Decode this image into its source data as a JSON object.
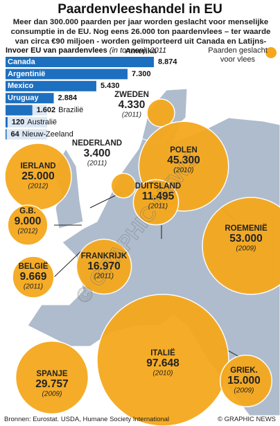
{
  "title": "Paardenvleeshandel in EU",
  "subtitle": "Meer dan 300.000 paarden per jaar worden geslacht voor menselijke consumptie in de EU. Nog eens 26.000 ton paardenvlees – ter waarde van circa €90 miljoen - worden geïmporteerd uit Canada en Latijns-Amerika",
  "source": "Bronnen: Eurostat. USDA, Humane Society International",
  "credit": "© GRAPHIC NEWS",
  "watermark": "© GRAPHIC NEWS",
  "chart_data": [
    {
      "type": "hbar",
      "title": "Invoer EU van paardenvlees",
      "subtitle": "(in tonnen), 2011",
      "color": "#1d6fc0",
      "categories": [
        "Canada",
        "Argentinië",
        "Mexico",
        "Uruguay",
        "Brazilië",
        "Australië",
        "Nieuw-Zeeland"
      ],
      "values": [
        8874,
        7300,
        5430,
        2884,
        1602,
        120,
        64
      ],
      "value_labels": [
        "8.874",
        "7.300",
        "5.430",
        "2.884",
        "1.602",
        "120",
        "64"
      ]
    },
    {
      "type": "bubble",
      "legend": "Paarden geslacht voor vlees",
      "color": "#f5a81d",
      "categories": [
        "ZWEDEN",
        "NEDERLAND",
        "POLEN",
        "IERLAND",
        "DUITSLAND",
        "G.B.",
        "BELGIË",
        "FRANKRIJK",
        "ROEMENIË",
        "SPANJE",
        "ITALIË",
        "GRIEK."
      ],
      "values": [
        4330,
        3400,
        45300,
        25000,
        11495,
        9000,
        9669,
        16970,
        53000,
        29757,
        97648,
        15000
      ],
      "value_labels": [
        "4.330",
        "3.400",
        "45.300",
        "25.000",
        "11.495",
        "9.000",
        "9.669",
        "16.970",
        "53.000",
        "29.757",
        "97.648",
        "15.000"
      ],
      "years": [
        "(2011)",
        "(2011)",
        "(2010)",
        "(2012)",
        "(2011)",
        "(2012)",
        "(2011)",
        "(2011)",
        "(2009)",
        "(2009)",
        "(2010)",
        "(2009)"
      ]
    }
  ]
}
